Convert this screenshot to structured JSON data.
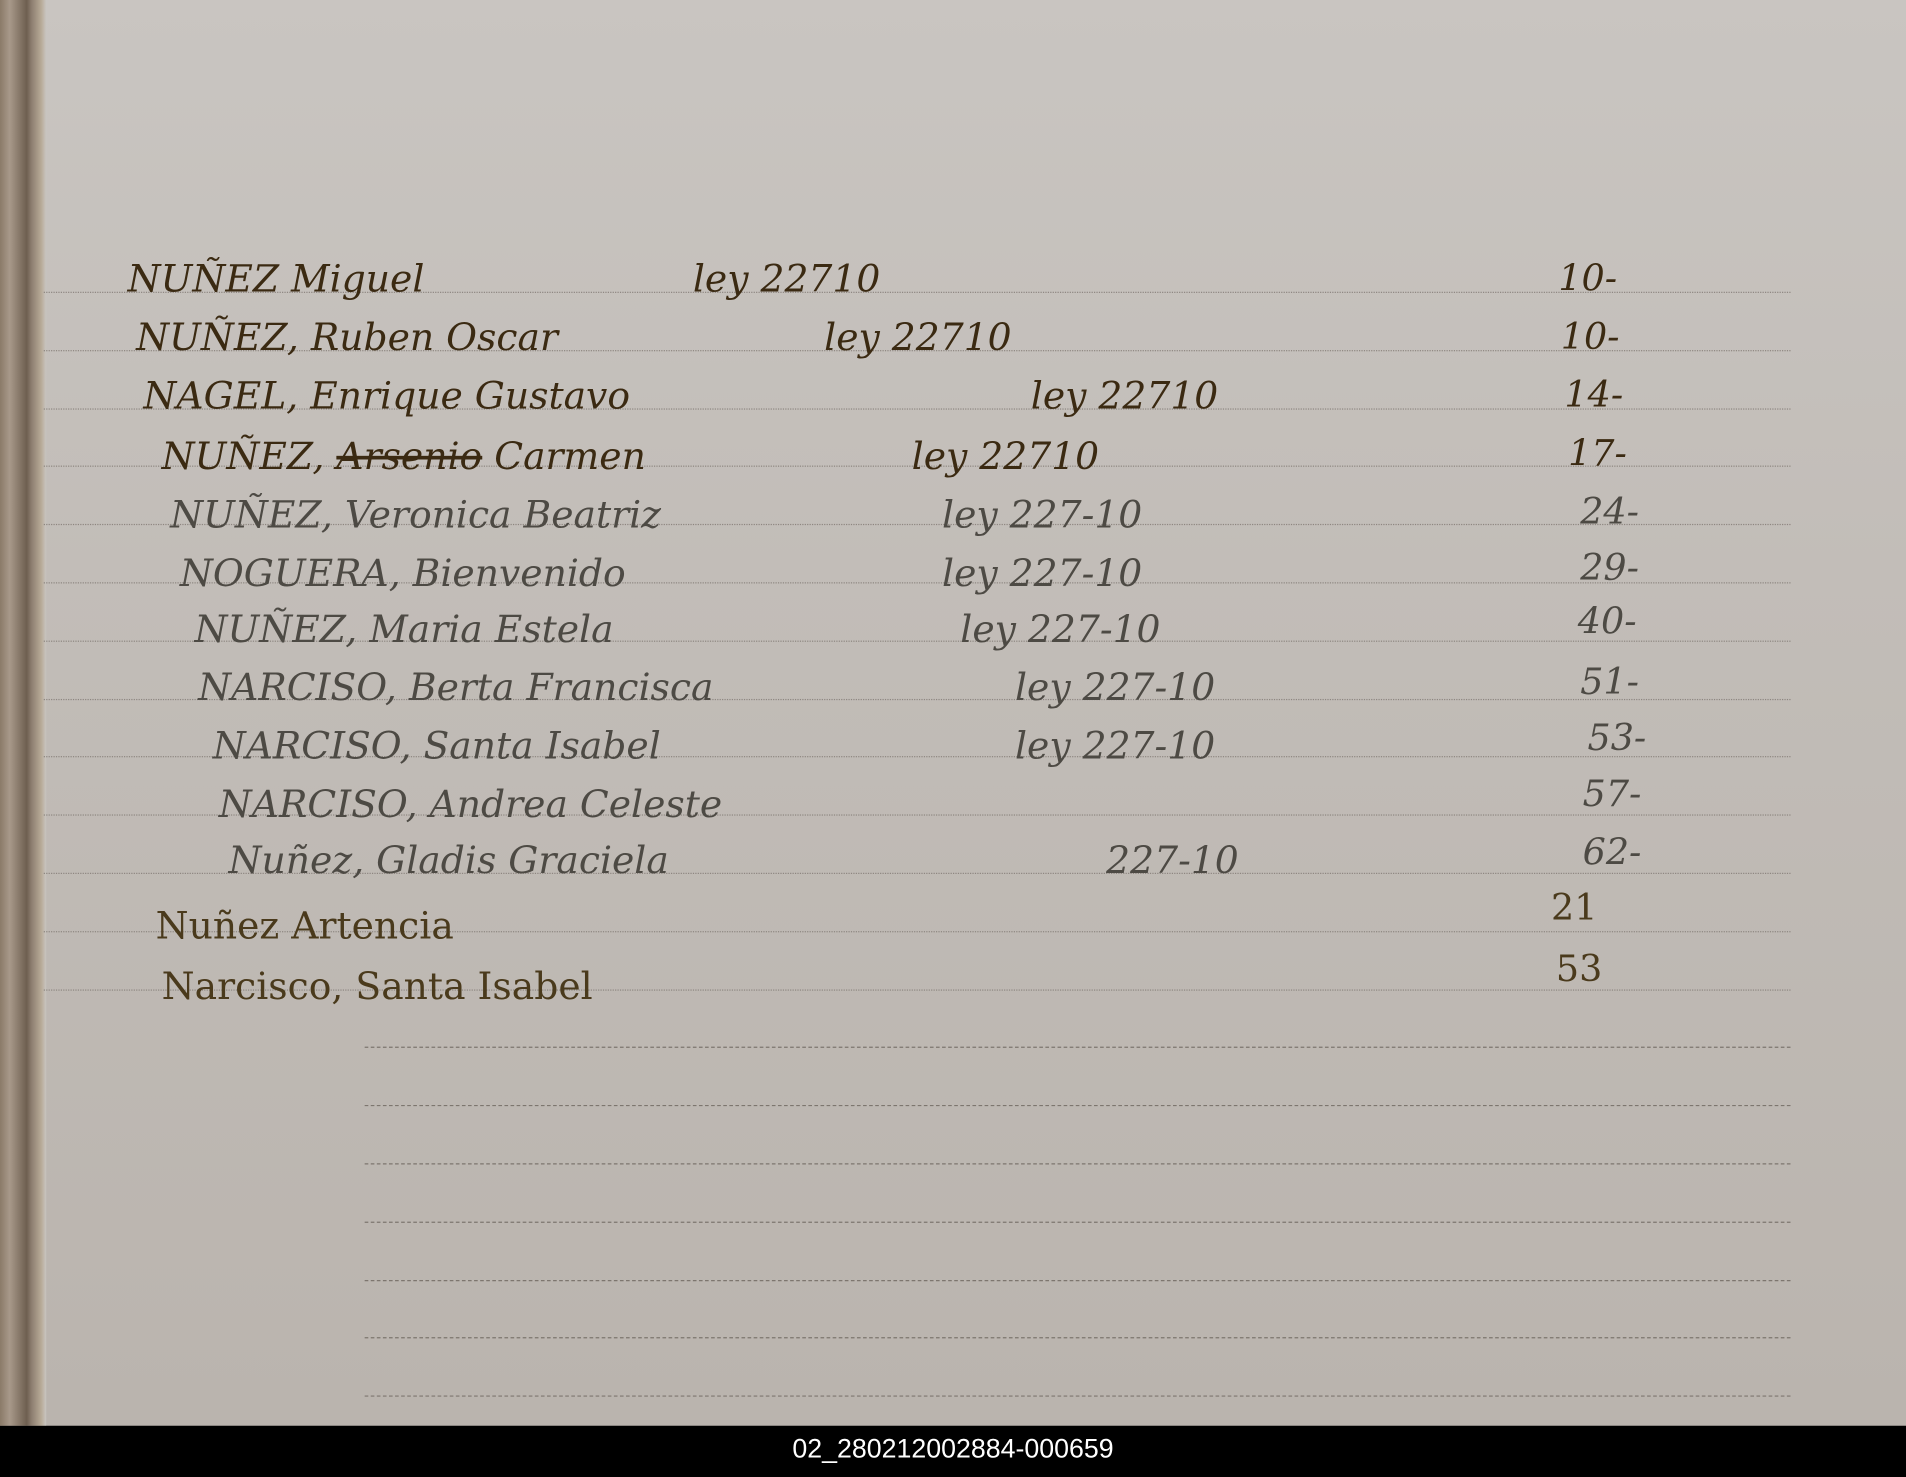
{
  "document": {
    "rows": [
      {
        "surname": "NUÑEZ",
        "given": "Miguel",
        "struck": "",
        "law": "ley 22710",
        "number": "10-"
      },
      {
        "surname": "NUÑEZ,",
        "given": "Ruben Oscar",
        "struck": "",
        "law": "ley 22710",
        "number": "10-"
      },
      {
        "surname": "NAGEL,",
        "given": "Enrique Gustavo",
        "struck": "",
        "law": "ley 22710",
        "number": "14-"
      },
      {
        "surname": "NUÑEZ,",
        "given": "Carmen",
        "struck": "Arsenio",
        "law": "ley 22710",
        "number": "17-"
      },
      {
        "surname": "NUÑEZ,",
        "given": "Veronica Beatriz",
        "struck": "",
        "law": "ley 227-10",
        "number": "24-"
      },
      {
        "surname": "NOGUERA,",
        "given": "Bienvenido",
        "struck": "",
        "law": "ley   227-10",
        "number": "29-"
      },
      {
        "surname": "NUÑEZ,",
        "given": "Maria Estela",
        "struck": "",
        "law": "ley  227-10",
        "number": "40-"
      },
      {
        "surname": "NARCISO,",
        "given": "Berta Francisca",
        "struck": "",
        "law": "ley 227-10",
        "number": "51-"
      },
      {
        "surname": "NARCISO,",
        "given": "Santa Isabel",
        "struck": "",
        "law": "ley 227-10",
        "number": "53-"
      },
      {
        "surname": "NARCISO,",
        "given": "Andrea Celeste",
        "struck": "",
        "law": "",
        "number": "57-"
      },
      {
        "surname": "Nuñez,",
        "given": "Gladis Graciela",
        "struck": "",
        "law": "227-10",
        "number": "62-"
      },
      {
        "surname": "Nuñez",
        "given": "Artencia",
        "struck": "",
        "law": "",
        "number": "21"
      },
      {
        "surname": "Narcisco,",
        "given": "Santa Isabel",
        "struck": "",
        "law": "",
        "number": "53"
      }
    ]
  },
  "caption": "02_280212002884-000659",
  "colors": {
    "paper": "#c4bfba",
    "ink_brown": "#3b2a12",
    "ink_gray": "#4d4a44",
    "caption_bar": "#000000"
  }
}
